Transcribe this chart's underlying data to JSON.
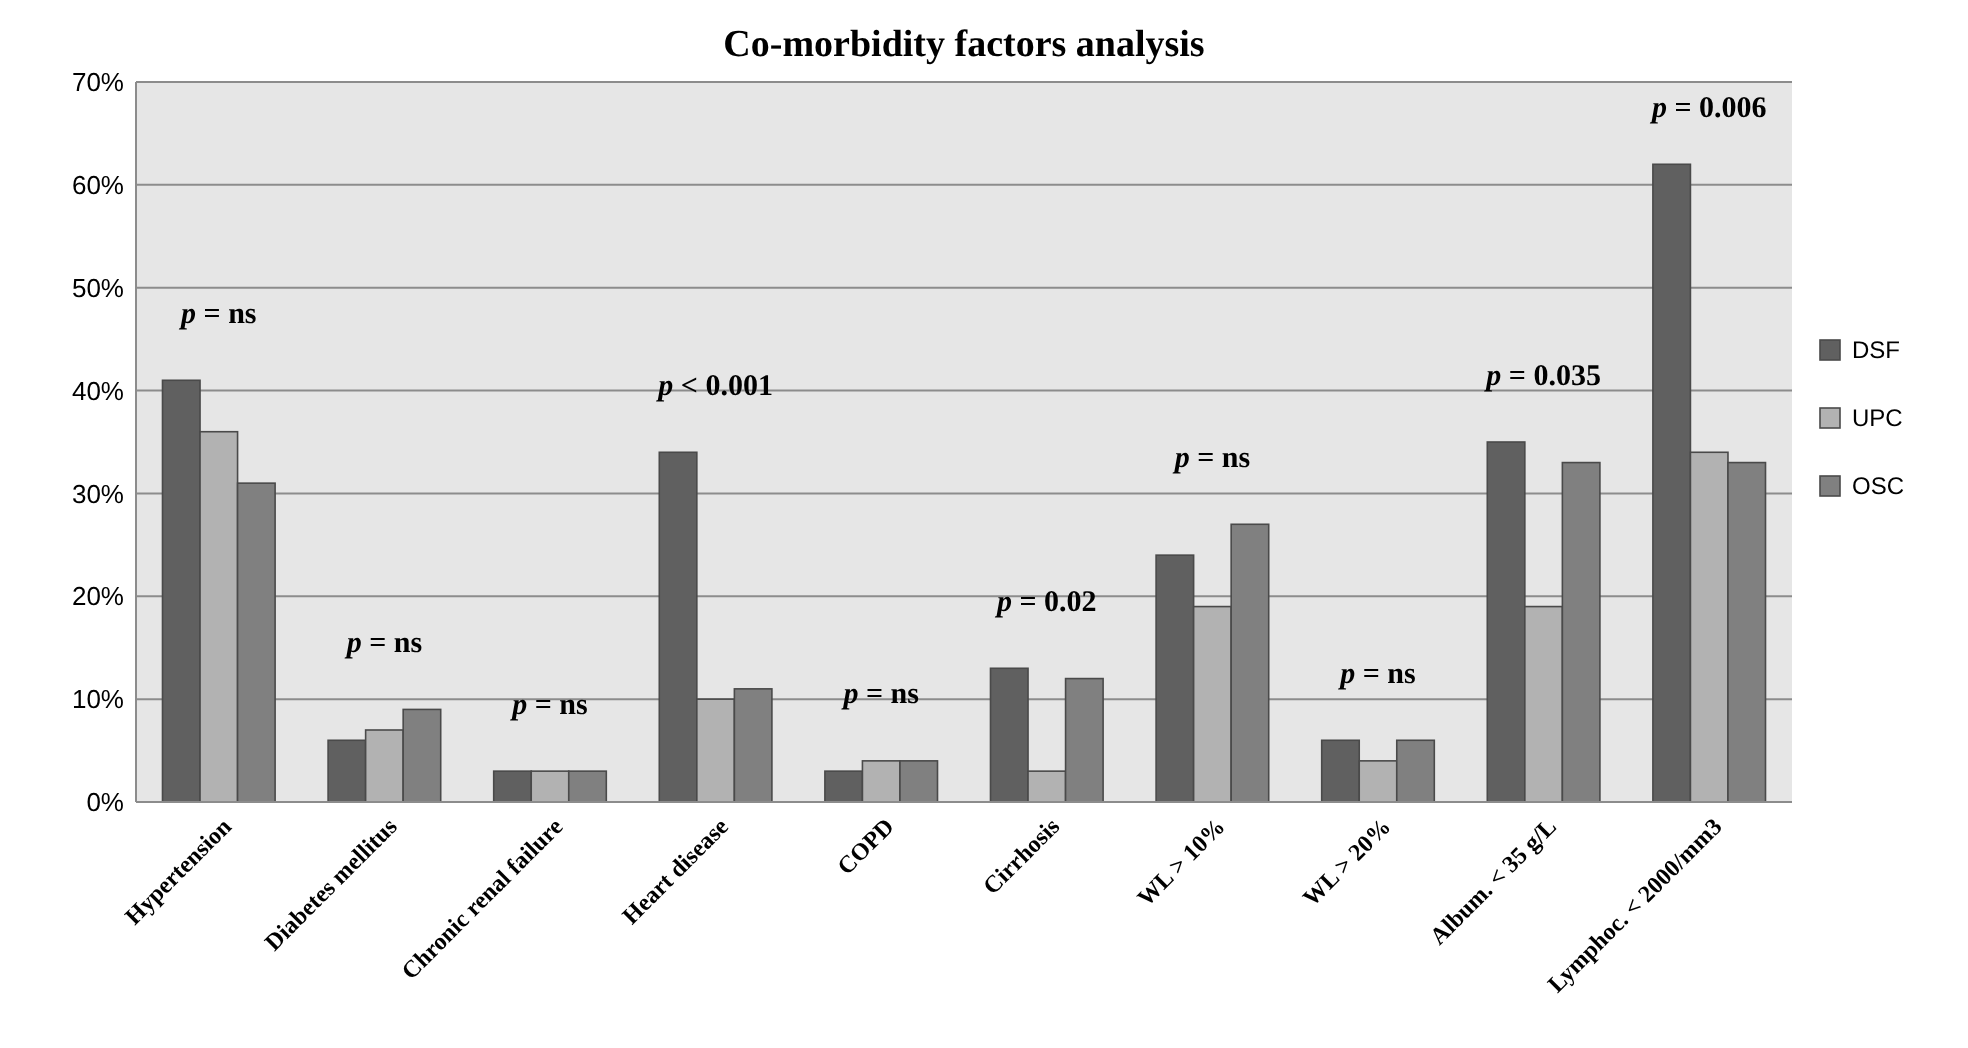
{
  "chart_data": {
    "type": "bar",
    "title": "Co-morbidity factors analysis",
    "categories": [
      "Hypertension",
      "Diabetes mellitus",
      "Chronic renal failure",
      "Heart disease",
      "COPD",
      "Cirrhosis",
      "WL > 10%",
      "WL > 20%",
      "Album. < 35 g/L",
      "Lymphoc. < 2000/mm3"
    ],
    "series": [
      {
        "name": "DSF",
        "color": "#606060",
        "values": [
          41,
          6,
          3,
          34,
          3,
          13,
          24,
          6,
          35,
          62
        ]
      },
      {
        "name": "UPC",
        "color": "#b2b2b2",
        "values": [
          36,
          7,
          3,
          10,
          4,
          3,
          19,
          4,
          19,
          34
        ]
      },
      {
        "name": "OSC",
        "color": "#808080",
        "values": [
          31,
          9,
          3,
          11,
          4,
          12,
          27,
          6,
          33,
          33
        ]
      }
    ],
    "ylim": [
      0,
      70
    ],
    "yticks": [
      {
        "value": 0,
        "label": "0%"
      },
      {
        "value": 10,
        "label": "10%"
      },
      {
        "value": 20,
        "label": "20%"
      },
      {
        "value": 30,
        "label": "30%"
      },
      {
        "value": 40,
        "label": "40%"
      },
      {
        "value": 50,
        "label": "50%"
      },
      {
        "value": 60,
        "label": "60%"
      },
      {
        "value": 70,
        "label": "70%"
      }
    ],
    "grid": "y",
    "legend": "right",
    "annotations": [
      "p = ns",
      "p = ns",
      "p = ns",
      "p < 0.001",
      "p = ns",
      "p = 0.02",
      "p = ns",
      "p = ns",
      "p = 0.035",
      "p = 0.006"
    ]
  }
}
